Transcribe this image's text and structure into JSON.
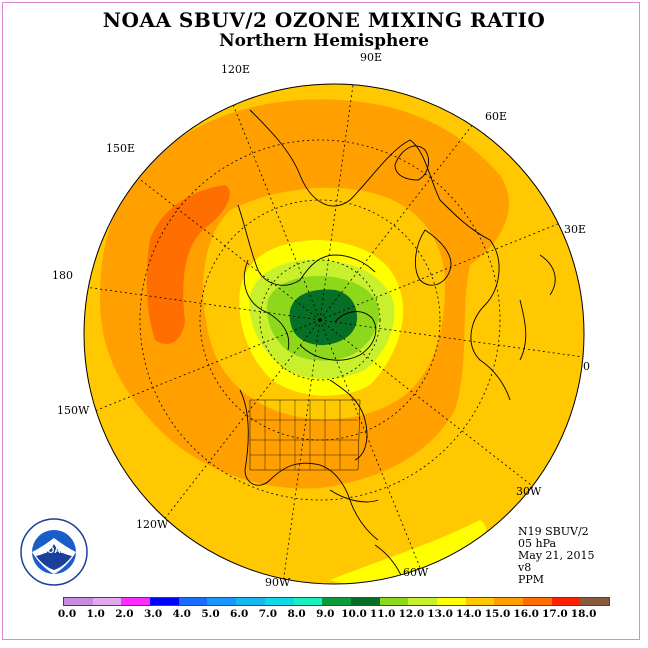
{
  "title": "NOAA SBUV/2 OZONE MIXING RATIO",
  "subtitle": "Northern Hemisphere",
  "info": {
    "satellite": "N19 SBUV/2",
    "level": "05 hPa",
    "date": "May 21, 2015",
    "version": "v8",
    "units": "PPM"
  },
  "longitude_labels": [
    "90E",
    "60E",
    "30E",
    "0",
    "30W",
    "60W",
    "90W",
    "120W",
    "150W",
    "180",
    "150E",
    "120E"
  ],
  "logo": {
    "text": "NOAA",
    "ring_text": "NATIONAL OCEANIC AND ATMOSPHERIC ADMINISTRATION · U.S. DEPARTMENT OF COMMERCE"
  },
  "colorbar": {
    "ticks": [
      "0.0",
      "1.0",
      "2.0",
      "3.0",
      "4.0",
      "5.0",
      "6.0",
      "7.0",
      "8.0",
      "9.0",
      "10.0",
      "11.0",
      "12.0",
      "13.0",
      "14.0",
      "15.0",
      "16.0",
      "17.0",
      "18.0"
    ],
    "colors": [
      "#c78be0",
      "#e0aaf0",
      "#ff2cff",
      "#0000ff",
      "#1a6bff",
      "#1a96ff",
      "#17b8f0",
      "#10d8e8",
      "#18f0c0",
      "#0a9a3a",
      "#066e25",
      "#8ed81c",
      "#c8f02c",
      "#ffff00",
      "#ffc800",
      "#ffa000",
      "#ff6e00",
      "#ff1e00",
      "#8b5a3c"
    ]
  },
  "colors": {
    "background": "#ffc800",
    "band_orange": "#ffa000",
    "max_region": "#ff6e00",
    "yellow": "#ffff00",
    "green_light": "#c8f02c",
    "green": "#8ed81c",
    "green_dark": "#066e25"
  }
}
